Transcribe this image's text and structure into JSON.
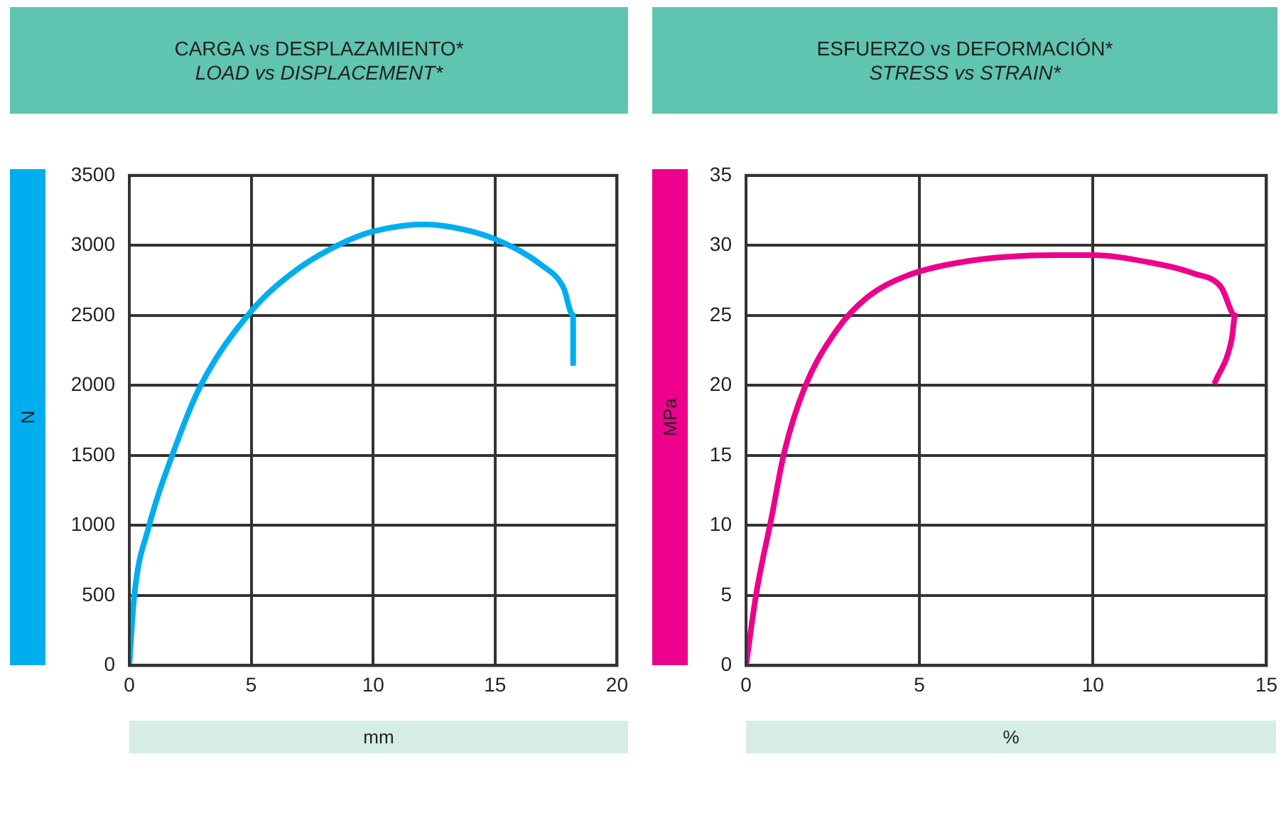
{
  "chart_data": [
    {
      "type": "line",
      "title": "CARGA vs DESPLAZAMIENTO*",
      "subtitle": "LOAD vs DISPLACEMENT*",
      "xlabel": "mm",
      "ylabel": "N",
      "xlim": [
        0,
        20
      ],
      "xticks": [
        0,
        5,
        10,
        15,
        20
      ],
      "ylim": [
        0,
        3500
      ],
      "yticks": [
        0,
        500,
        1000,
        1500,
        2000,
        2500,
        3000,
        3500
      ],
      "grid": true,
      "marker": "none",
      "series": [
        {
          "color": "#00aeef",
          "x": [
            0,
            0.2,
            0.8,
            1.8,
            2.9,
            5.0,
            6.9,
            8.9,
            10.0,
            12.1,
            13.8,
            15.2,
            16.9,
            17.8,
            18.2,
            18.2
          ],
          "values": [
            0,
            490,
            990,
            1520,
            1990,
            2530,
            2830,
            3030,
            3100,
            3150,
            3110,
            3030,
            2860,
            2700,
            2500,
            2140
          ]
        }
      ]
    },
    {
      "type": "line",
      "title": "ESFUERZO vs DEFORMACIÓN*",
      "subtitle": "STRESS vs STRAIN*",
      "xlabel": "%",
      "ylabel": "MPa",
      "xlim": [
        0,
        15
      ],
      "xticks": [
        0,
        5,
        10,
        15
      ],
      "ylim": [
        0,
        35
      ],
      "yticks": [
        0,
        5,
        10,
        15,
        20,
        25,
        30,
        35
      ],
      "grid": true,
      "marker": "none",
      "series": [
        {
          "color": "#ec008c",
          "x": [
            0,
            0.3,
            0.73,
            1.1,
            1.7,
            2.6,
            3.5,
            4.6,
            6.2,
            8.9,
            10.0,
            11.6,
            12.9,
            13.7,
            14.1,
            14.0,
            13.5
          ],
          "values": [
            0,
            5.2,
            10.5,
            15.2,
            19.9,
            23.9,
            26.3,
            27.8,
            28.8,
            29.3,
            29.3,
            28.8,
            28.0,
            27.0,
            25.0,
            23.3,
            20.1
          ]
        }
      ]
    }
  ]
}
